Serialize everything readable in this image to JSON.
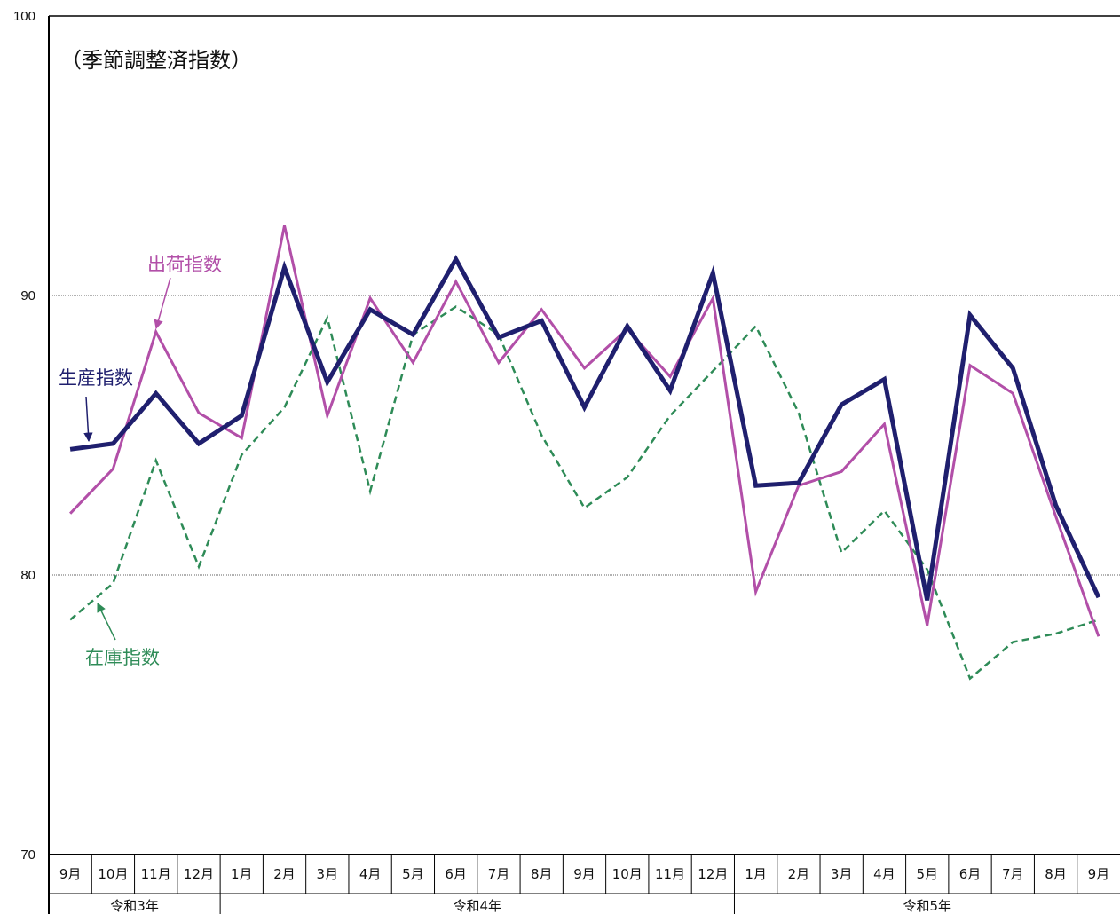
{
  "chart_data": {
    "type": "line",
    "note": "（季節調整済指数）",
    "ylim": [
      70,
      100
    ],
    "yticks": [
      "70",
      "80",
      "90",
      "100"
    ],
    "grid_y": [
      80,
      90
    ],
    "categories": [
      "9月",
      "10月",
      "11月",
      "12月",
      "1月",
      "2月",
      "3月",
      "4月",
      "5月",
      "6月",
      "7月",
      "8月",
      "9月",
      "10月",
      "11月",
      "12月",
      "1月",
      "2月",
      "3月",
      "4月",
      "5月",
      "6月",
      "7月",
      "8月",
      "9月"
    ],
    "years": [
      {
        "label": "令和3年",
        "start": 0,
        "end": 3
      },
      {
        "label": "令和4年",
        "start": 4,
        "end": 15
      },
      {
        "label": "令和5年",
        "start": 16,
        "end": 24
      }
    ],
    "series": [
      {
        "name": "生産指数",
        "color": "#1f1f6e",
        "style": "thick",
        "values": [
          84.5,
          84.7,
          86.5,
          84.7,
          85.7,
          91.0,
          86.9,
          89.5,
          88.6,
          91.3,
          88.5,
          89.1,
          86.0,
          88.9,
          86.6,
          90.8,
          83.2,
          83.3,
          86.1,
          87.0,
          79.1,
          89.3,
          87.4,
          82.5,
          79.2
        ]
      },
      {
        "name": "出荷指数",
        "color": "#b24fa8",
        "style": "solid",
        "values": [
          82.2,
          83.8,
          88.7,
          85.8,
          84.9,
          92.5,
          85.7,
          89.9,
          87.6,
          90.5,
          87.6,
          89.5,
          87.4,
          88.8,
          87.1,
          89.9,
          79.4,
          83.2,
          83.7,
          85.4,
          78.2,
          87.5,
          86.5,
          82.1,
          77.8
        ]
      },
      {
        "name": "在庫指数",
        "color": "#2e8b57",
        "style": "dashed",
        "values": [
          78.4,
          79.7,
          84.1,
          80.3,
          84.3,
          86.0,
          89.2,
          83.0,
          88.6,
          89.6,
          88.6,
          85.0,
          82.4,
          83.5,
          85.7,
          87.3,
          88.9,
          85.8,
          80.8,
          82.3,
          80.2,
          76.3,
          77.6,
          77.9,
          78.4
        ]
      }
    ]
  }
}
